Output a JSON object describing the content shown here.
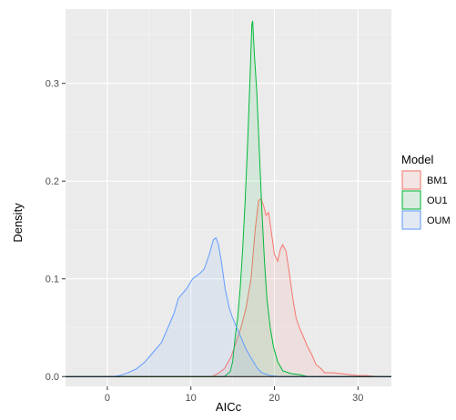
{
  "chart_data": {
    "type": "area",
    "xlabel": "AICc",
    "ylabel": "Density",
    "xlim": [
      -5,
      34
    ],
    "ylim": [
      -0.01,
      0.376
    ],
    "x_ticks": [
      0,
      10,
      20,
      30
    ],
    "x_tick_labels": [
      "0",
      "10",
      "20",
      "30"
    ],
    "y_ticks": [
      0.0,
      0.1,
      0.2,
      0.3
    ],
    "y_tick_labels": [
      "0.0",
      "0.1",
      "0.2",
      "0.3"
    ],
    "grid": true,
    "legend": {
      "title": "Model",
      "position": "right"
    },
    "series": [
      {
        "name": "BM1",
        "color": "#F8766D",
        "points": [
          [
            -5,
            0
          ],
          [
            12.5,
            0
          ],
          [
            13.2,
            0.003
          ],
          [
            14,
            0.008
          ],
          [
            14.8,
            0.02
          ],
          [
            15.4,
            0.035
          ],
          [
            16,
            0.05
          ],
          [
            16.6,
            0.07
          ],
          [
            17.2,
            0.1
          ],
          [
            17.7,
            0.15
          ],
          [
            18.1,
            0.18
          ],
          [
            18.4,
            0.182
          ],
          [
            18.7,
            0.175
          ],
          [
            19,
            0.165
          ],
          [
            19.3,
            0.168
          ],
          [
            19.6,
            0.15
          ],
          [
            20,
            0.125
          ],
          [
            20.4,
            0.118
          ],
          [
            20.7,
            0.13
          ],
          [
            21,
            0.135
          ],
          [
            21.4,
            0.128
          ],
          [
            21.8,
            0.105
          ],
          [
            22.2,
            0.08
          ],
          [
            22.6,
            0.06
          ],
          [
            23,
            0.05
          ],
          [
            23.5,
            0.04
          ],
          [
            24,
            0.03
          ],
          [
            24.5,
            0.022
          ],
          [
            25,
            0.012
          ],
          [
            25.6,
            0.008
          ],
          [
            26,
            0.004
          ],
          [
            27,
            0.004
          ],
          [
            28,
            0.003
          ],
          [
            29,
            0.002
          ],
          [
            30,
            0.001
          ],
          [
            31,
            0.001
          ],
          [
            32.5,
            0
          ],
          [
            34,
            0
          ]
        ]
      },
      {
        "name": "OU1",
        "color": "#00BA38",
        "points": [
          [
            -5,
            0
          ],
          [
            14,
            0
          ],
          [
            14.7,
            0.005
          ],
          [
            15,
            0.015
          ],
          [
            15.3,
            0.04
          ],
          [
            15.6,
            0.06
          ],
          [
            15.9,
            0.09
          ],
          [
            16.2,
            0.13
          ],
          [
            16.5,
            0.18
          ],
          [
            16.8,
            0.24
          ],
          [
            17.1,
            0.31
          ],
          [
            17.3,
            0.36
          ],
          [
            17.4,
            0.364
          ],
          [
            17.6,
            0.33
          ],
          [
            17.9,
            0.29
          ],
          [
            18.2,
            0.23
          ],
          [
            18.5,
            0.17
          ],
          [
            18.8,
            0.12
          ],
          [
            19.1,
            0.08
          ],
          [
            19.5,
            0.05
          ],
          [
            19.9,
            0.03
          ],
          [
            20.4,
            0.015
          ],
          [
            21,
            0.006
          ],
          [
            22,
            0.003
          ],
          [
            23,
            0.002
          ],
          [
            24,
            0
          ],
          [
            34,
            0
          ]
        ]
      },
      {
        "name": "OUM",
        "color": "#619CFF",
        "points": [
          [
            -5,
            0
          ],
          [
            0.5,
            0
          ],
          [
            1.5,
            0.001
          ],
          [
            2.5,
            0.004
          ],
          [
            3.5,
            0.008
          ],
          [
            4.5,
            0.015
          ],
          [
            5.5,
            0.025
          ],
          [
            6.5,
            0.035
          ],
          [
            7,
            0.045
          ],
          [
            7.5,
            0.055
          ],
          [
            8,
            0.065
          ],
          [
            8.5,
            0.08
          ],
          [
            9.5,
            0.09
          ],
          [
            10.2,
            0.1
          ],
          [
            11,
            0.105
          ],
          [
            11.6,
            0.11
          ],
          [
            12.2,
            0.125
          ],
          [
            12.7,
            0.14
          ],
          [
            13,
            0.142
          ],
          [
            13.3,
            0.135
          ],
          [
            13.7,
            0.115
          ],
          [
            14.1,
            0.09
          ],
          [
            14.6,
            0.07
          ],
          [
            15,
            0.06
          ],
          [
            15.5,
            0.05
          ],
          [
            16,
            0.04
          ],
          [
            16.5,
            0.03
          ],
          [
            17,
            0.022
          ],
          [
            17.5,
            0.015
          ],
          [
            18,
            0.008
          ],
          [
            18.5,
            0.004
          ],
          [
            19.5,
            0.001
          ],
          [
            20.5,
            0
          ],
          [
            34,
            0
          ]
        ]
      }
    ]
  }
}
